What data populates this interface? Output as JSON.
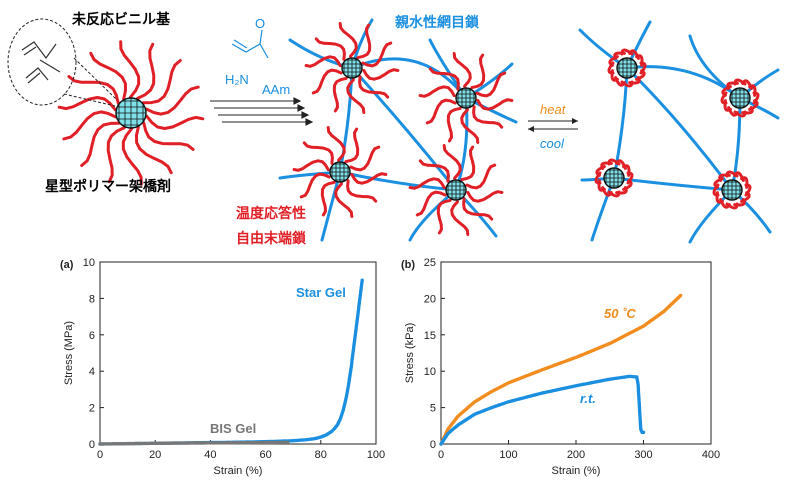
{
  "colors": {
    "red": "#e01f26",
    "blue": "#1b8fe0",
    "cyan": "#7fe0e8",
    "orange": "#f28c1e",
    "gray": "#555555",
    "bisgray": "#777777"
  },
  "schematic": {
    "unreacted_vinyl": "未反応ビニル基",
    "star_crosslinker": "星型ポリマー架橋剤",
    "hydrophilic_network": "親水性網目鎖",
    "thermo_free_end_1": "温度応答性",
    "thermo_free_end_2": "自由末端鎖",
    "monomer_h2n": "H₂N",
    "monomer_o": "O",
    "monomer_name": "AAm",
    "heat": "heat",
    "cool": "cool"
  },
  "chart_data": [
    {
      "type": "scatter",
      "panel_label": "(a)",
      "xlabel": "Strain (%)",
      "ylabel": "Stress (MPa)",
      "xlim": [
        0,
        100
      ],
      "ylim": [
        0,
        10
      ],
      "xticks": [
        0,
        20,
        40,
        60,
        80,
        100
      ],
      "yticks": [
        0,
        2,
        4,
        6,
        8,
        10
      ],
      "series": [
        {
          "name": "Star Gel",
          "color": "#1b8fe0",
          "x": [
            0,
            10,
            20,
            30,
            40,
            50,
            60,
            70,
            75,
            78,
            80,
            82,
            84,
            85,
            86,
            87,
            88,
            89,
            90,
            91,
            92,
            93,
            94,
            95
          ],
          "y": [
            0,
            0.02,
            0.04,
            0.06,
            0.08,
            0.1,
            0.13,
            0.18,
            0.24,
            0.3,
            0.38,
            0.5,
            0.7,
            0.85,
            1.05,
            1.35,
            1.8,
            2.4,
            3.2,
            4.2,
            5.4,
            6.6,
            7.8,
            9.0
          ]
        },
        {
          "name": "BIS Gel",
          "color": "#777777",
          "x": [
            0,
            10,
            20,
            30,
            40,
            50,
            60,
            68
          ],
          "y": [
            0,
            0.02,
            0.04,
            0.05,
            0.06,
            0.07,
            0.08,
            0.09
          ]
        }
      ]
    },
    {
      "type": "scatter",
      "panel_label": "(b)",
      "xlabel": "Strain (%)",
      "ylabel": "Stress (kPa)",
      "xlim": [
        0,
        400
      ],
      "ylim": [
        0,
        25
      ],
      "xticks": [
        0,
        100,
        200,
        300,
        400
      ],
      "yticks": [
        0,
        5,
        10,
        15,
        20,
        25
      ],
      "series": [
        {
          "name": "50 ˚C",
          "color": "#f28c1e",
          "x": [
            0,
            10,
            25,
            50,
            75,
            100,
            150,
            200,
            250,
            300,
            330,
            355
          ],
          "y": [
            0,
            2.0,
            3.8,
            5.8,
            7.2,
            8.4,
            10.2,
            11.9,
            13.8,
            16.2,
            18.2,
            20.4
          ]
        },
        {
          "name": "r.t.",
          "color": "#1b8fe0",
          "x": [
            0,
            10,
            25,
            50,
            75,
            100,
            150,
            200,
            250,
            280,
            290,
            292,
            293,
            294,
            295,
            296,
            298,
            300
          ],
          "y": [
            0,
            1.4,
            2.6,
            4.1,
            5.0,
            5.8,
            7.0,
            8.0,
            8.9,
            9.3,
            9.2,
            8.2,
            6.5,
            5.0,
            3.5,
            2.0,
            1.6,
            1.6
          ]
        }
      ]
    }
  ]
}
